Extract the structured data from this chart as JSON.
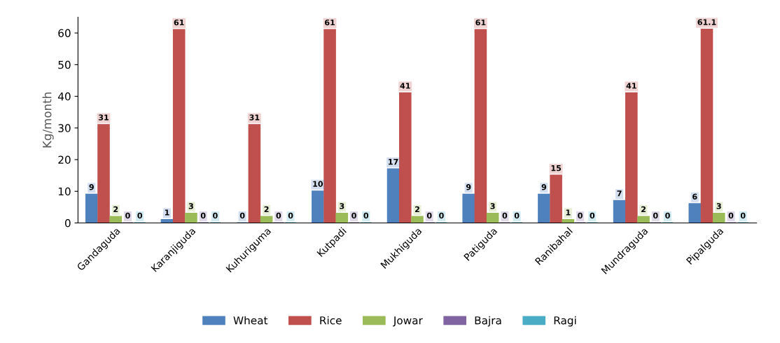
{
  "chart_data": {
    "type": "bar",
    "ylabel": "Kg/month",
    "categories": [
      "Gandaguda",
      "Karanjiguda",
      "Kuhuriguma",
      "Kutpadi",
      "Mukhiguda",
      "Patiguda",
      "Ranibahal",
      "Mundraguda",
      "Pipalguda"
    ],
    "series": [
      {
        "name": "Wheat",
        "color": "#4f81bd",
        "values": [
          9,
          1,
          0,
          10,
          17,
          9,
          9,
          7,
          6
        ]
      },
      {
        "name": "Rice",
        "color": "#c0504d",
        "values": [
          31,
          61,
          31,
          61,
          41,
          61,
          15,
          41,
          61.1
        ]
      },
      {
        "name": "Jowar",
        "color": "#9bbb59",
        "values": [
          2,
          3,
          2,
          3,
          2,
          3,
          1,
          2,
          3
        ]
      },
      {
        "name": "Bajra",
        "color": "#8064a2",
        "values": [
          0,
          0,
          0,
          0,
          0,
          0,
          0,
          0,
          0
        ]
      },
      {
        "name": "Ragi",
        "color": "#4bacc6",
        "values": [
          0,
          0,
          0,
          0,
          0,
          0,
          0,
          0,
          0
        ]
      }
    ],
    "ylim": [
      0,
      65
    ],
    "yticks": [
      0,
      10,
      20,
      30,
      40,
      50,
      60
    ],
    "data_labels": true,
    "legend": "bottom",
    "grid": false
  }
}
